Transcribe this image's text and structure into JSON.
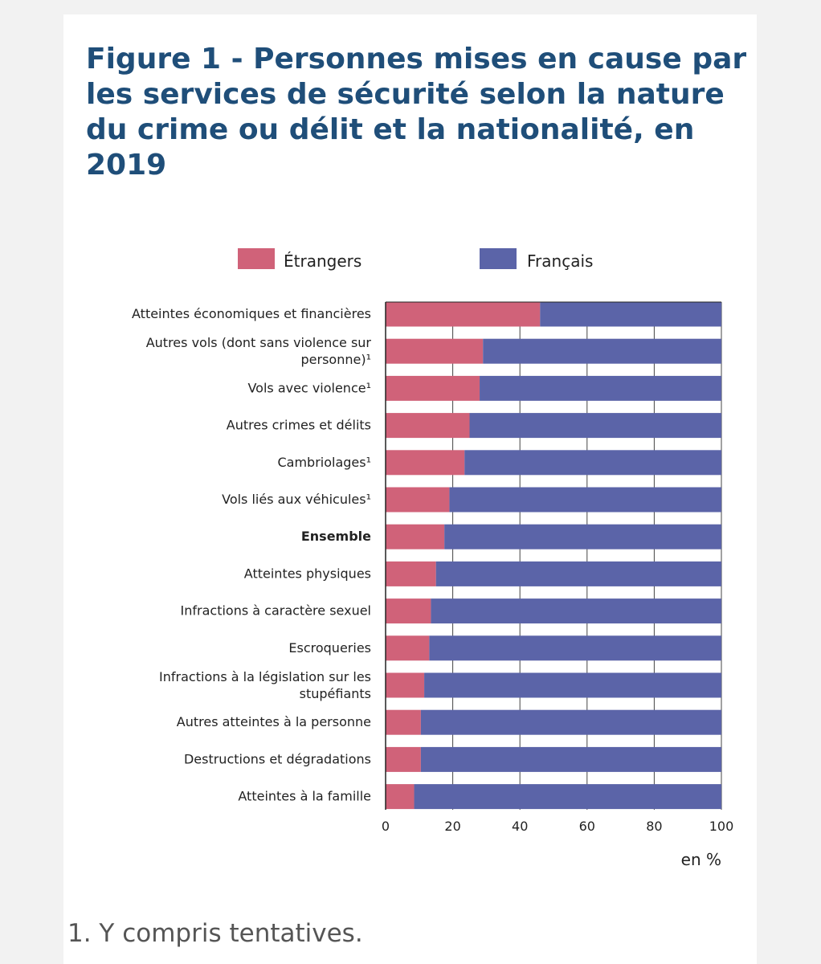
{
  "chart_data": {
    "type": "bar",
    "stacked": true,
    "orientation": "horizontal",
    "title": "Figure 1 - Personnes mises en cause par les services de sécurité selon la nature du crime ou délit et la nationalité, en 2019",
    "unit_label": "en %",
    "xlim": [
      0,
      100
    ],
    "xticks": [
      "0",
      "20",
      "40",
      "60",
      "80",
      "100"
    ],
    "categories": [
      "Atteintes économiques et financières",
      "Autres vols (dont sans violence sur personne)¹",
      "Vols avec violence¹",
      "Autres crimes et délits",
      "Cambriolages¹",
      "Vols liés aux véhicules¹",
      "Ensemble",
      "Atteintes physiques",
      "Infractions à caractère sexuel",
      "Escroqueries",
      "Infractions à la législation sur les stupéfiants",
      "Autres atteintes à la personne",
      "Destructions et dégradations",
      "Atteintes à la famille"
    ],
    "bold_category": "Ensemble",
    "series": [
      {
        "name": "Étrangers",
        "color": "#d06279",
        "values": [
          46,
          29,
          28,
          25,
          23.5,
          19,
          17.5,
          15,
          13.5,
          13,
          11.5,
          10.5,
          10.5,
          8.5
        ]
      },
      {
        "name": "Français",
        "color": "#5b64a8",
        "values": [
          54,
          71,
          72,
          75,
          76.5,
          81,
          82.5,
          85,
          86.5,
          87,
          88.5,
          89.5,
          89.5,
          91.5
        ]
      }
    ],
    "legend_position": "top"
  },
  "footnote": "1. Y compris tentatives."
}
